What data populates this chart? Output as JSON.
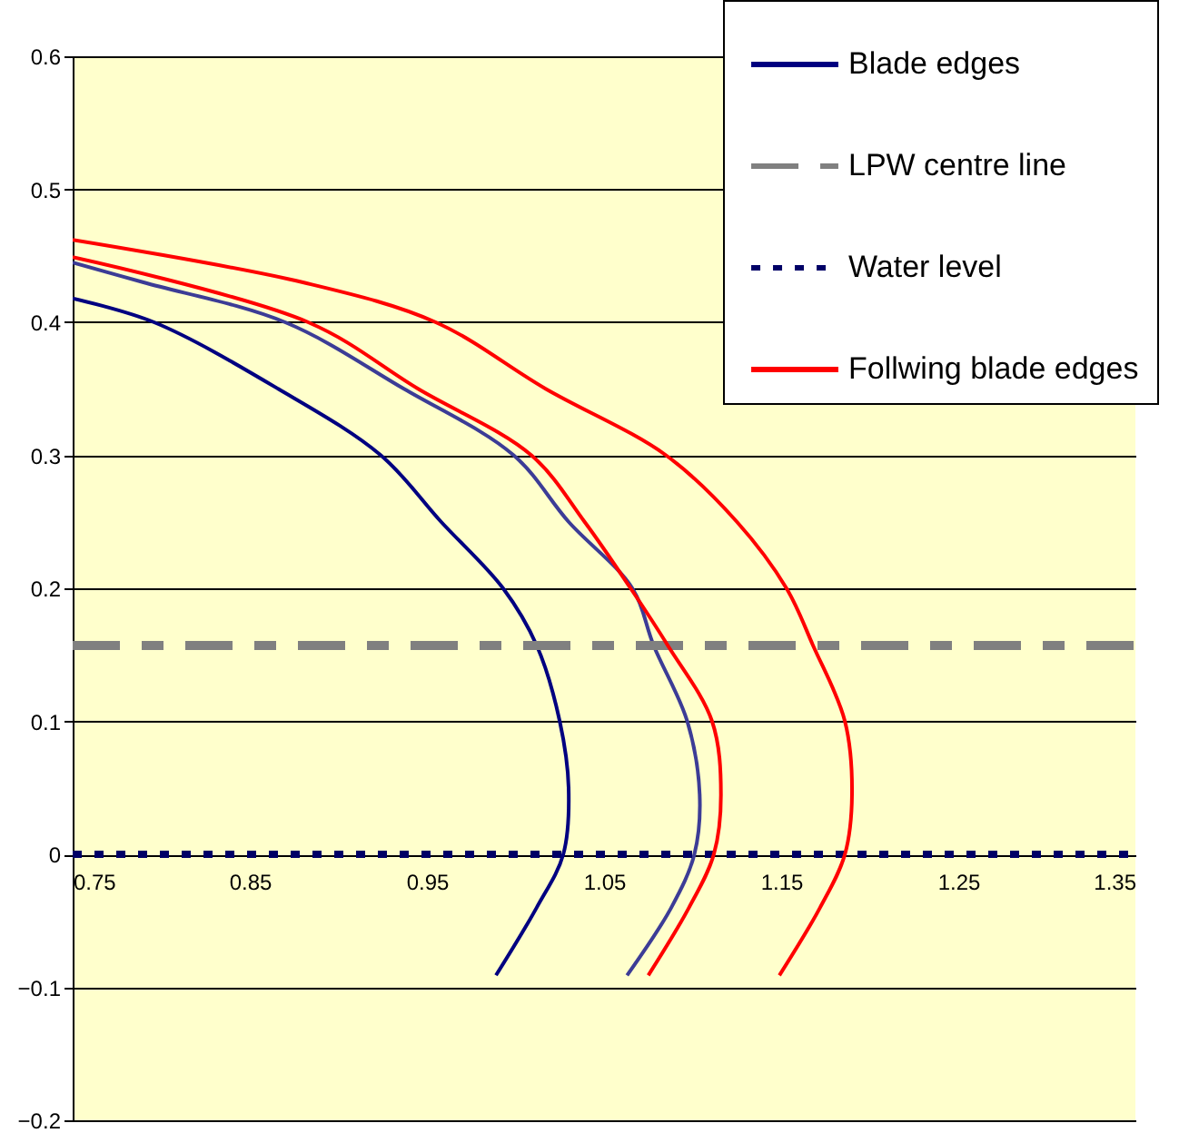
{
  "chart_data": {
    "type": "line",
    "xlim": [
      0.75,
      1.35
    ],
    "xticks": [
      0.75,
      0.85,
      0.95,
      1.05,
      1.15,
      1.25,
      1.35
    ],
    "ylim": [
      -0.2,
      0.6
    ],
    "yticks": [
      -0.2,
      -0.1,
      0,
      0.1,
      0.2,
      0.3,
      0.4,
      0.5,
      0.6
    ],
    "grid": "y",
    "legend": "top right",
    "series": [
      {
        "name": "Blade edges",
        "color": "#000080",
        "line_style": "solid",
        "x": [
          0.75,
          0.796,
          0.866,
          0.924,
          0.958,
          0.993,
          1.012,
          1.025,
          1.03,
          1.027,
          1.012,
          0.989
        ],
        "values": [
          0.418,
          0.4,
          0.35,
          0.3,
          0.25,
          0.2,
          0.157,
          0.1,
          0.05,
          0,
          -0.04,
          -0.091
        ]
      },
      {
        "color": "#3c3c96",
        "line_style": "solid",
        "x": [
          0.75,
          0.79,
          0.87,
          0.937,
          0.999,
          1.03,
          1.066,
          1.078,
          1.097,
          1.104,
          1.101,
          1.088,
          1.063
        ],
        "values": [
          0.445,
          0.43,
          0.4,
          0.35,
          0.3,
          0.25,
          0.2,
          0.157,
          0.1,
          0.045,
          0,
          -0.04,
          -0.091
        ]
      },
      {
        "name": "LPW centre line",
        "color": "#808080",
        "line_style": "dashed",
        "x": [
          0.75,
          1.35
        ],
        "values": [
          0.157,
          0.157
        ]
      },
      {
        "name": "Water level",
        "color": "#000066",
        "line_style": "dotted",
        "x": [
          0.75,
          1.35
        ],
        "values": [
          0,
          0
        ]
      },
      {
        "name": "Follwing blade edges",
        "color": "#ff0000",
        "line_style": "solid",
        "x": [
          0.75,
          0.883,
          0.945,
          1.009,
          1.039,
          1.065,
          1.086,
          1.111,
          1.116,
          1.112,
          1.098,
          1.075
        ],
        "values": [
          0.449,
          0.4,
          0.35,
          0.3,
          0.25,
          0.2,
          0.157,
          0.1,
          0.045,
          0,
          -0.04,
          -0.091
        ]
      },
      {
        "color": "#ff0000",
        "line_style": "solid",
        "x": [
          0.75,
          0.88,
          0.955,
          1.017,
          1.085,
          1.125,
          1.153,
          1.168,
          1.186,
          1.19,
          1.186,
          1.172,
          1.149
        ],
        "values": [
          0.462,
          0.43,
          0.4,
          0.35,
          0.3,
          0.25,
          0.2,
          0.157,
          0.1,
          0.045,
          0,
          -0.04,
          -0.091
        ]
      }
    ]
  }
}
